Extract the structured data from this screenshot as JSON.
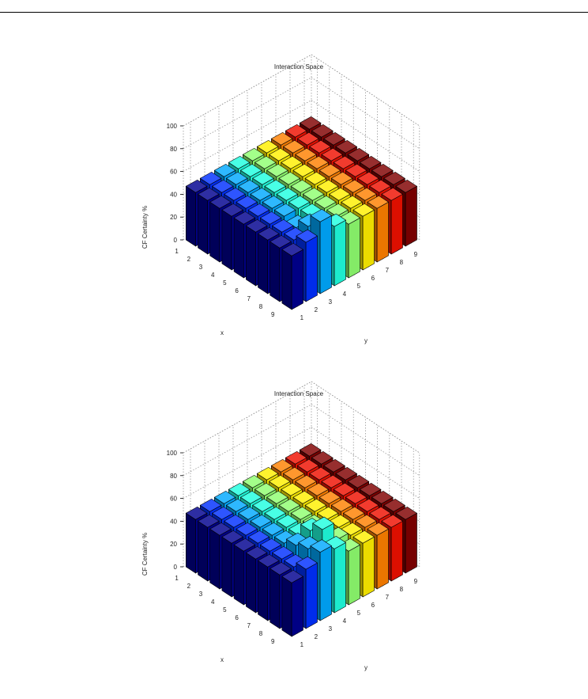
{
  "charts": [
    {
      "chart_data": {
        "type": "bar3d",
        "title": "Interaction Space",
        "xlabel": "x",
        "ylabel": "y",
        "zlabel": "CF Certainty %",
        "x_ticks": [
          "1",
          "2",
          "3",
          "4",
          "5",
          "6",
          "7",
          "8",
          "9"
        ],
        "y_ticks": [
          "1",
          "2",
          "3",
          "4",
          "5",
          "6",
          "7",
          "8",
          "9"
        ],
        "z_ticks": [
          "0",
          "20",
          "40",
          "60",
          "80",
          "100"
        ],
        "zlim": [
          0,
          100
        ],
        "grid": true,
        "colormap_by_y": [
          "#00008f",
          "#0030ff",
          "#00a8ff",
          "#20ffdf",
          "#8fff70",
          "#ffef00",
          "#ff8000",
          "#ef1000",
          "#800000"
        ],
        "values": [
          [
            47,
            47,
            47,
            47,
            47,
            47,
            47,
            47,
            47
          ],
          [
            47,
            47,
            47,
            47,
            47,
            47,
            47,
            47,
            47
          ],
          [
            47,
            47,
            47,
            47,
            47,
            47,
            47,
            47,
            47
          ],
          [
            47,
            47,
            47,
            47,
            47,
            47,
            47,
            47,
            47
          ],
          [
            47,
            47,
            47,
            47,
            47,
            47,
            47,
            47,
            47
          ],
          [
            47,
            47,
            47,
            47,
            47,
            47,
            47,
            47,
            47
          ],
          [
            47,
            47,
            44,
            47,
            47,
            47,
            47,
            47,
            47
          ],
          [
            47,
            47,
            52,
            47,
            47,
            47,
            47,
            47,
            47
          ],
          [
            47,
            52,
            63,
            52,
            47,
            47,
            47,
            47,
            47
          ]
        ]
      }
    },
    {
      "chart_data": {
        "type": "bar3d",
        "title": "Interaction Space",
        "xlabel": "x",
        "ylabel": "y",
        "zlabel": "CF Certainty %",
        "x_ticks": [
          "1",
          "2",
          "3",
          "4",
          "5",
          "6",
          "7",
          "8",
          "9"
        ],
        "y_ticks": [
          "1",
          "2",
          "3",
          "4",
          "5",
          "6",
          "7",
          "8",
          "9"
        ],
        "z_ticks": [
          "0",
          "20",
          "40",
          "60",
          "80",
          "100"
        ],
        "zlim": [
          0,
          100
        ],
        "grid": true,
        "colormap_by_y": [
          "#00008f",
          "#0030ff",
          "#00a8ff",
          "#20ffdf",
          "#8fff70",
          "#ffef00",
          "#ff8000",
          "#ef1000",
          "#800000"
        ],
        "values": [
          [
            47,
            47,
            47,
            47,
            47,
            47,
            47,
            47,
            47
          ],
          [
            47,
            47,
            47,
            47,
            47,
            47,
            47,
            47,
            47
          ],
          [
            47,
            47,
            47,
            47,
            47,
            47,
            47,
            47,
            47
          ],
          [
            47,
            47,
            47,
            47,
            47,
            47,
            47,
            47,
            47
          ],
          [
            47,
            47,
            47,
            47,
            47,
            47,
            47,
            47,
            47
          ],
          [
            47,
            47,
            47,
            47,
            47,
            47,
            47,
            47,
            47
          ],
          [
            47,
            47,
            52,
            58,
            47,
            47,
            47,
            47,
            47
          ],
          [
            47,
            47,
            56,
            66,
            50,
            47,
            47,
            47,
            47
          ],
          [
            47,
            52,
            60,
            56,
            47,
            47,
            47,
            47,
            47
          ]
        ]
      }
    }
  ]
}
